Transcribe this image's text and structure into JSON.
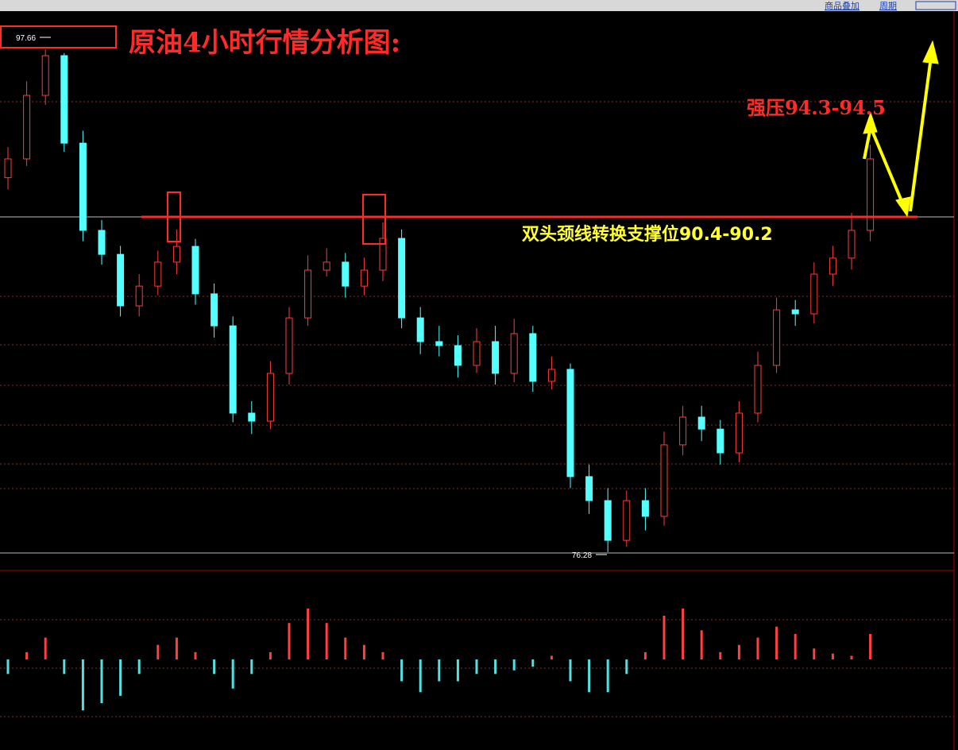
{
  "toolbar": [
    "商品叠加",
    "周期"
  ],
  "chart_data": [
    {
      "type": "candlestick",
      "title": "原油4小时行情分析图:",
      "annotations": [
        "强压94.3-94.5",
        "双头颈线转换支撑位90.4-90.2"
      ],
      "high_label": 97.66,
      "low_label": 76.28,
      "ylim": [
        75.5,
        99.08
      ],
      "up_color": "#ff3b3b",
      "down_color": "#54ffff",
      "open": [
        92.2,
        93.0,
        95.7,
        97.39,
        93.67,
        89.96,
        88.94,
        86.75,
        87.59,
        88.61,
        89.28,
        87.26,
        85.9,
        82.19,
        81.85,
        83.88,
        86.24,
        88.27,
        88.61,
        87.59,
        88.27,
        89.62,
        86.24,
        85.23,
        85.06,
        84.22,
        85.23,
        83.88,
        85.57,
        83.54,
        84.05,
        79.49,
        78.47,
        76.78,
        78.47,
        77.8,
        80.84,
        82.02,
        81.51,
        80.5,
        82.19,
        84.22,
        86.58,
        86.41,
        88.1,
        88.78,
        89.96
      ],
      "high": [
        93.5,
        96.3,
        97.66,
        97.5,
        94.2,
        90.4,
        89.3,
        88.1,
        89.1,
        90.0,
        89.6,
        87.7,
        86.3,
        82.7,
        84.4,
        86.7,
        88.9,
        89.2,
        89.0,
        88.8,
        90.3,
        90.0,
        86.7,
        85.9,
        85.5,
        85.8,
        85.9,
        86.2,
        85.9,
        84.6,
        84.3,
        80.0,
        79.0,
        78.9,
        79.0,
        81.4,
        82.5,
        82.5,
        81.9,
        82.7,
        84.8,
        87.1,
        87.0,
        88.6,
        89.3,
        90.7,
        93.6
      ],
      "low": [
        91.7,
        92.7,
        95.3,
        93.3,
        89.5,
        88.5,
        86.3,
        86.3,
        87.2,
        88.1,
        86.8,
        85.4,
        81.8,
        81.3,
        81.5,
        83.4,
        85.9,
        88.0,
        87.1,
        87.2,
        87.8,
        85.8,
        84.7,
        84.6,
        83.7,
        83.9,
        83.4,
        83.5,
        83.1,
        83.2,
        79.0,
        77.9,
        76.28,
        76.5,
        77.2,
        77.4,
        80.4,
        81.0,
        80.0,
        80.1,
        81.8,
        83.9,
        85.9,
        86.0,
        87.6,
        88.3,
        89.5
      ],
      "close": [
        93.0,
        95.7,
        97.39,
        93.67,
        89.96,
        88.94,
        86.75,
        87.59,
        88.61,
        89.28,
        87.26,
        85.9,
        82.19,
        81.85,
        83.88,
        86.24,
        88.27,
        88.61,
        87.59,
        88.27,
        89.62,
        86.24,
        85.23,
        85.06,
        84.22,
        85.23,
        83.88,
        85.57,
        83.54,
        84.05,
        79.49,
        78.47,
        76.78,
        78.47,
        77.8,
        80.84,
        82.02,
        81.51,
        80.5,
        82.19,
        84.22,
        86.58,
        86.41,
        88.1,
        88.78,
        89.96,
        93.0
      ]
    },
    {
      "type": "bar",
      "ylim": [
        -1.2,
        1.2
      ],
      "up_color": "#ff4040",
      "down_color": "#54e0e0",
      "values": [
        -0.2,
        0.1,
        0.3,
        -0.2,
        -0.7,
        -0.6,
        -0.5,
        -0.2,
        0.2,
        0.3,
        0.1,
        -0.2,
        -0.4,
        -0.2,
        0.1,
        0.5,
        0.7,
        0.5,
        0.3,
        0.2,
        0.1,
        -0.3,
        -0.45,
        -0.3,
        -0.3,
        -0.2,
        -0.2,
        -0.15,
        -0.1,
        0.05,
        -0.3,
        -0.45,
        -0.45,
        -0.2,
        0.1,
        0.6,
        0.7,
        0.4,
        0.1,
        0.2,
        0.3,
        0.45,
        0.35,
        0.15,
        0.08,
        0.05,
        0.35
      ]
    }
  ]
}
